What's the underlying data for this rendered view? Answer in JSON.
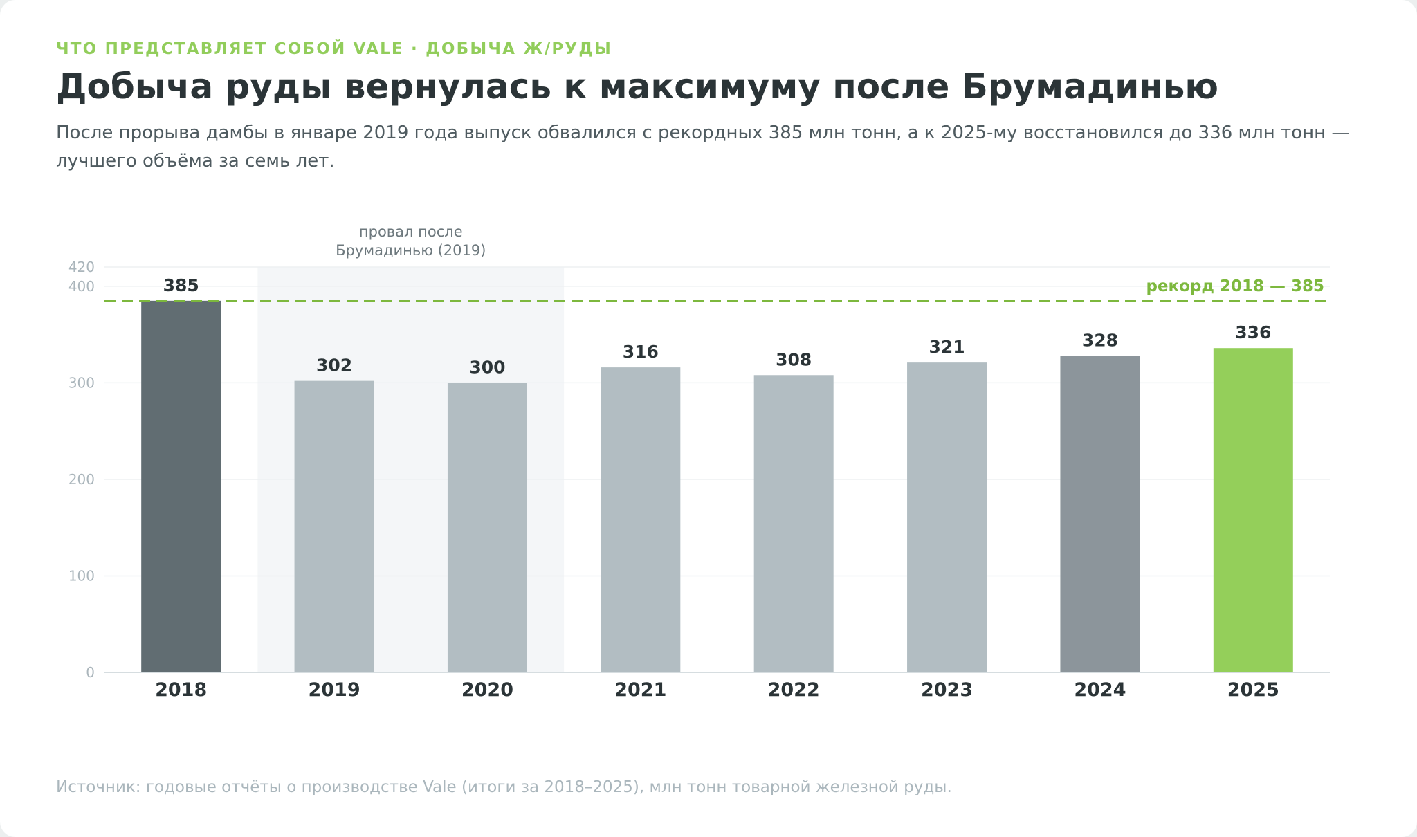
{
  "header": {
    "eyebrow": "ЧТО ПРЕДСТАВЛЯЕТ СОБОЙ VALE · ДОБЫЧА Ж/РУДЫ",
    "title": "Добыча руды вернулась к максимуму после Брумадинью",
    "subtitle": "После прорыва дамбы в январе 2019 года выпуск обвалился с рекордных 385 млн тонн, а к 2025-му восстановился до 336 млн тонн — лучшего объёма за семь лет."
  },
  "footer": {
    "source": "Источник: годовые отчёты о производстве Vale (итоги за 2018–2025), млн тонн товарной железной руды."
  },
  "chart_data": {
    "type": "bar",
    "categories": [
      "2018",
      "2019",
      "2020",
      "2021",
      "2022",
      "2023",
      "2024",
      "2025"
    ],
    "values": [
      385,
      302,
      300,
      316,
      308,
      321,
      328,
      336
    ],
    "value_labels": [
      "385",
      "302",
      "300",
      "316",
      "308",
      "321",
      "328",
      "336"
    ],
    "bar_colors": [
      "#616d72",
      "#b2bdc2",
      "#b2bdc2",
      "#b2bdc2",
      "#b2bdc2",
      "#b2bdc2",
      "#8c959b",
      "#94cf5a"
    ],
    "ylim": [
      0,
      420
    ],
    "yticks": [
      0,
      100,
      200,
      300,
      400,
      420
    ],
    "ytick_labels": [
      "0",
      "100",
      "200",
      "300",
      "400",
      "420"
    ],
    "grid": true,
    "reference_line": {
      "value": 385,
      "label": "рекорд 2018 — 385",
      "color": "#7db83e"
    },
    "shaded_region": {
      "from": "2019",
      "to": "2020",
      "label_lines": [
        "провал после",
        "Брумадинью (2019)"
      ]
    }
  }
}
